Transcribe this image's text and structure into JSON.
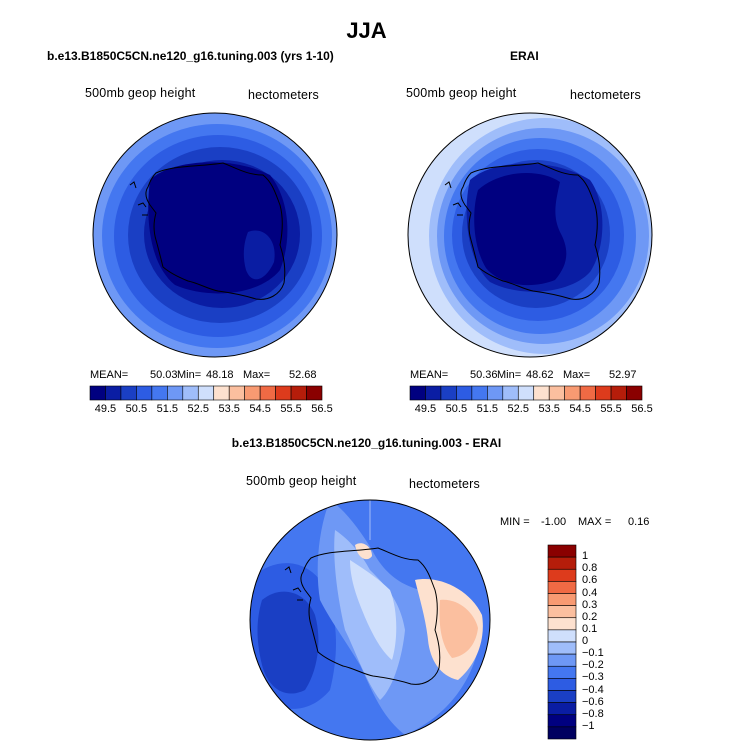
{
  "title": "JJA",
  "colors": {
    "c0": "#000080",
    "c1": "#0a1da3",
    "c2": "#1a3fc4",
    "c3": "#2d5ce3",
    "c4": "#4477f0",
    "c5": "#6e98f5",
    "c6": "#9fbdfa",
    "c7": "#cfdffc",
    "c8": "#fde1cf",
    "c9": "#fbbf9f",
    "c10": "#f89a72",
    "c11": "#f06a44",
    "c12": "#dd3b1c",
    "c13": "#b51d0a",
    "c14": "#8a0000",
    "coast": "#000000"
  },
  "chart_data": [
    {
      "type": "heatmap",
      "panel": "model",
      "title": "b.e13.B1850C5CN.ne120_g16.tuning.003 (yrs 1-10)",
      "variable": "500mb geop height",
      "units": "hectometers",
      "mean_label": "MEAN=",
      "mean": "50.03",
      "min_label": "Min=",
      "min": "48.18",
      "max_label": "Max=",
      "max": "52.68",
      "colorbar_ticks": [
        "49.5",
        "50.5",
        "51.5",
        "52.5",
        "53.5",
        "54.5",
        "55.5",
        "56.5"
      ]
    },
    {
      "type": "heatmap",
      "panel": "obs",
      "title": "ERAI",
      "variable": "500mb geop height",
      "units": "hectometers",
      "mean_label": "MEAN=",
      "mean": "50.36",
      "min_label": "Min=",
      "min": "48.62",
      "max_label": "Max=",
      "max": "52.97",
      "colorbar_ticks": [
        "49.5",
        "50.5",
        "51.5",
        "52.5",
        "53.5",
        "54.5",
        "55.5",
        "56.5"
      ]
    },
    {
      "type": "heatmap",
      "panel": "difference",
      "title": "b.e13.B1850C5CN.ne120_g16.tuning.003 - ERAI",
      "variable": "500mb geop height",
      "units": "hectometers",
      "min_label": "MIN =",
      "min": "-1.00",
      "max_label": "MAX =",
      "max": "0.16",
      "colorbar_levels": [
        "1",
        "0.8",
        "0.6",
        "0.4",
        "0.3",
        "0.2",
        "0.1",
        "0",
        "−0.1",
        "−0.2",
        "−0.3",
        "−0.4",
        "−0.6",
        "−0.8",
        "−1"
      ]
    }
  ]
}
